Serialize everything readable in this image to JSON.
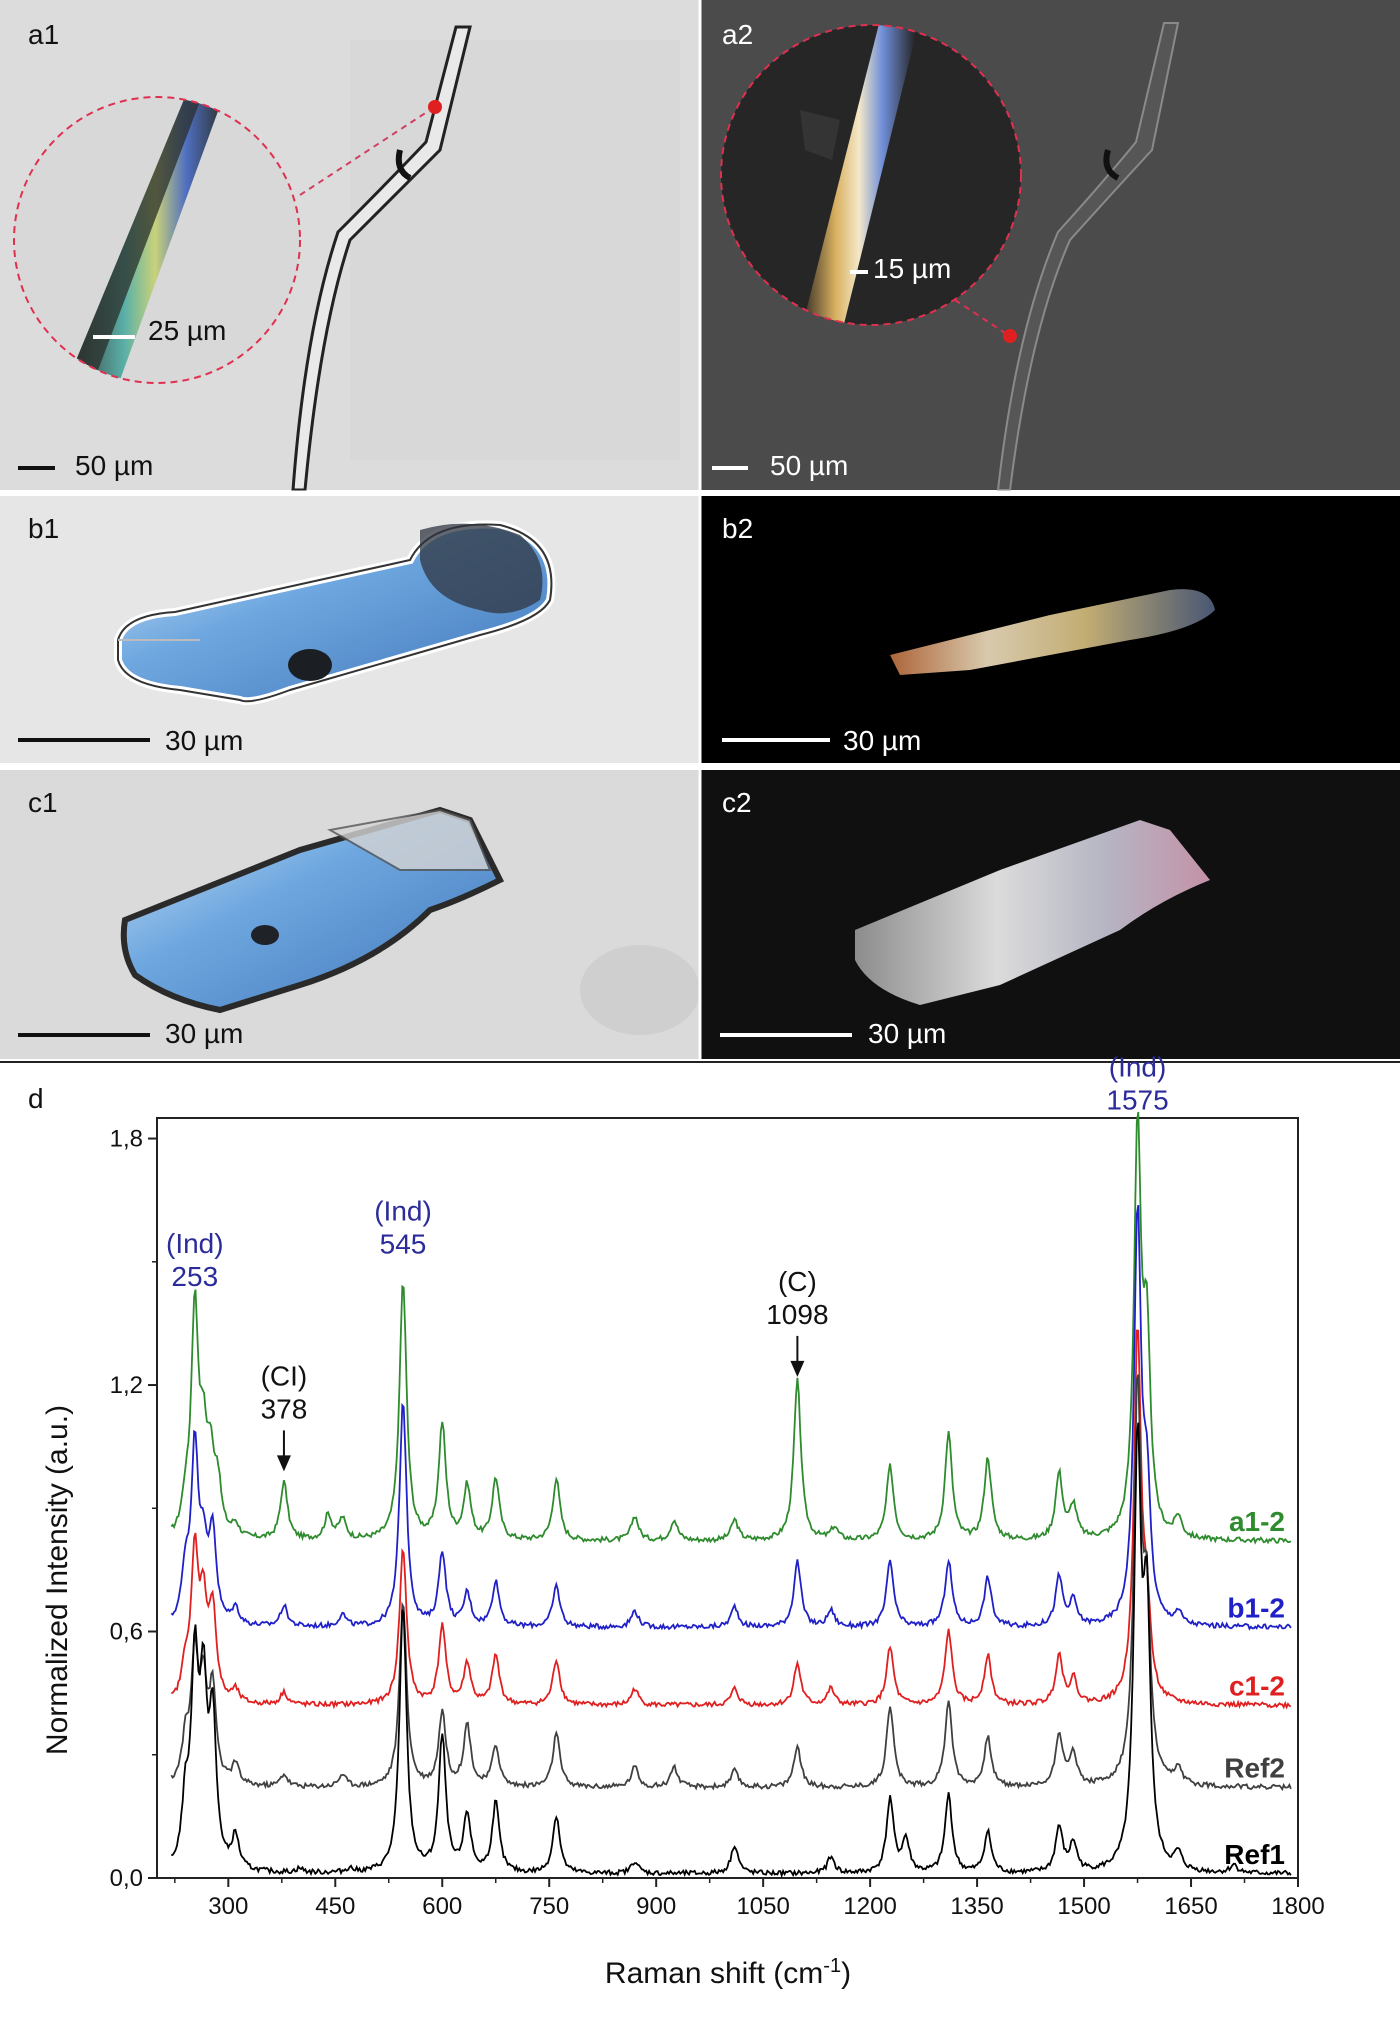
{
  "panels": [
    {
      "id": "a1",
      "label": "a1",
      "scale_label": "50 µm",
      "inset_scale_label": "25 µm"
    },
    {
      "id": "a2",
      "label": "a2",
      "scale_label": "50 µm",
      "inset_scale_label": "15 µm"
    },
    {
      "id": "b1",
      "label": "b1",
      "scale_label": "30 µm"
    },
    {
      "id": "b2",
      "label": "b2",
      "scale_label": "30 µm"
    },
    {
      "id": "c1",
      "label": "c1",
      "scale_label": "30 µm"
    },
    {
      "id": "c2",
      "label": "c2",
      "scale_label": "30 µm"
    }
  ],
  "chart_data": {
    "type": "line",
    "panel_label": "d",
    "xlabel": "Raman shift (cm",
    "xlabel_sup": "-1",
    "xlabel_end": ")",
    "ylabel": "Normalized Intensity (a.u.)",
    "xlim": [
      200,
      1800
    ],
    "ylim": [
      0,
      1.85
    ],
    "x_ticks": [
      300,
      450,
      600,
      750,
      900,
      1050,
      1200,
      1350,
      1500,
      1650,
      1800
    ],
    "x_tick_labels": [
      "300",
      "450",
      "600",
      "750",
      "900",
      "1050",
      "1200",
      "1350",
      "1500",
      "1650",
      "1800"
    ],
    "y_ticks": [
      0,
      0.6,
      1.2,
      1.8
    ],
    "y_tick_labels": [
      "0,0",
      "0,6",
      "1,2",
      "1,8"
    ],
    "grid": false,
    "annotations": [
      {
        "top": "(Ind)",
        "bottom": "253",
        "x": 253,
        "color": "#2b2b9a"
      },
      {
        "top": "(CI)",
        "bottom": "378",
        "x": 378,
        "color": "#111111",
        "arrow": true,
        "arrow_to": 0.98
      },
      {
        "top": "(Ind)",
        "bottom": "545",
        "x": 545,
        "color": "#2b2b9a"
      },
      {
        "top": "(C)",
        "bottom": "1098",
        "x": 1098,
        "color": "#111111",
        "arrow": true,
        "arrow_to": 1.21
      },
      {
        "top": "(Ind)",
        "bottom": "1575",
        "x": 1575,
        "color": "#2b2b9a"
      }
    ],
    "series": [
      {
        "name": "a1-2",
        "color": "#2e8b2e",
        "offset": 0.82,
        "peaks": [
          [
            240,
            0.07
          ],
          [
            253,
            0.55
          ],
          [
            265,
            0.2
          ],
          [
            275,
            0.16
          ],
          [
            285,
            0.12
          ],
          [
            310,
            0.03
          ],
          [
            378,
            0.14
          ],
          [
            440,
            0.06
          ],
          [
            460,
            0.05
          ],
          [
            545,
            0.63
          ],
          [
            600,
            0.28
          ],
          [
            635,
            0.13
          ],
          [
            675,
            0.15
          ],
          [
            760,
            0.15
          ],
          [
            870,
            0.06
          ],
          [
            925,
            0.05
          ],
          [
            1010,
            0.05
          ],
          [
            1098,
            0.39
          ],
          [
            1150,
            0.03
          ],
          [
            1228,
            0.18
          ],
          [
            1310,
            0.26
          ],
          [
            1365,
            0.2
          ],
          [
            1465,
            0.16
          ],
          [
            1485,
            0.08
          ],
          [
            1575,
            0.98
          ],
          [
            1588,
            0.45
          ],
          [
            1632,
            0.05
          ]
        ]
      },
      {
        "name": "b1-2",
        "color": "#2020c8",
        "offset": 0.61,
        "peaks": [
          [
            240,
            0.12
          ],
          [
            253,
            0.42
          ],
          [
            265,
            0.16
          ],
          [
            278,
            0.22
          ],
          [
            310,
            0.04
          ],
          [
            378,
            0.05
          ],
          [
            460,
            0.03
          ],
          [
            545,
            0.55
          ],
          [
            600,
            0.18
          ],
          [
            635,
            0.08
          ],
          [
            675,
            0.11
          ],
          [
            760,
            0.1
          ],
          [
            870,
            0.04
          ],
          [
            1010,
            0.05
          ],
          [
            1098,
            0.16
          ],
          [
            1145,
            0.04
          ],
          [
            1228,
            0.16
          ],
          [
            1310,
            0.16
          ],
          [
            1365,
            0.12
          ],
          [
            1465,
            0.12
          ],
          [
            1485,
            0.06
          ],
          [
            1575,
            0.99
          ],
          [
            1588,
            0.3
          ],
          [
            1632,
            0.03
          ]
        ]
      },
      {
        "name": "c1-2",
        "color": "#e02020",
        "offset": 0.42,
        "peaks": [
          [
            240,
            0.08
          ],
          [
            253,
            0.35
          ],
          [
            265,
            0.22
          ],
          [
            278,
            0.22
          ],
          [
            310,
            0.03
          ],
          [
            378,
            0.03
          ],
          [
            545,
            0.38
          ],
          [
            600,
            0.19
          ],
          [
            635,
            0.1
          ],
          [
            675,
            0.12
          ],
          [
            760,
            0.11
          ],
          [
            870,
            0.04
          ],
          [
            1010,
            0.04
          ],
          [
            1098,
            0.1
          ],
          [
            1145,
            0.04
          ],
          [
            1228,
            0.14
          ],
          [
            1310,
            0.18
          ],
          [
            1365,
            0.12
          ],
          [
            1465,
            0.12
          ],
          [
            1485,
            0.06
          ],
          [
            1575,
            0.9
          ],
          [
            1588,
            0.2
          ]
        ]
      },
      {
        "name": "Ref2",
        "color": "#404040",
        "offset": 0.22,
        "peaks": [
          [
            240,
            0.1
          ],
          [
            253,
            0.3
          ],
          [
            265,
            0.22
          ],
          [
            278,
            0.22
          ],
          [
            310,
            0.05
          ],
          [
            378,
            0.03
          ],
          [
            460,
            0.03
          ],
          [
            545,
            0.45
          ],
          [
            600,
            0.18
          ],
          [
            635,
            0.15
          ],
          [
            675,
            0.1
          ],
          [
            760,
            0.13
          ],
          [
            870,
            0.05
          ],
          [
            925,
            0.05
          ],
          [
            1010,
            0.04
          ],
          [
            1098,
            0.1
          ],
          [
            1228,
            0.2
          ],
          [
            1310,
            0.21
          ],
          [
            1365,
            0.12
          ],
          [
            1465,
            0.13
          ],
          [
            1485,
            0.08
          ],
          [
            1575,
            0.95
          ],
          [
            1588,
            0.4
          ],
          [
            1632,
            0.04
          ]
        ]
      },
      {
        "name": "Ref1",
        "color": "#000000",
        "offset": 0.01,
        "peaks": [
          [
            240,
            0.15
          ],
          [
            253,
            0.48
          ],
          [
            265,
            0.4
          ],
          [
            278,
            0.35
          ],
          [
            310,
            0.08
          ],
          [
            400,
            0.01
          ],
          [
            470,
            0.01
          ],
          [
            545,
            0.65
          ],
          [
            600,
            0.33
          ],
          [
            635,
            0.14
          ],
          [
            675,
            0.17
          ],
          [
            760,
            0.14
          ],
          [
            870,
            0.03
          ],
          [
            1010,
            0.07
          ],
          [
            1145,
            0.04
          ],
          [
            1228,
            0.18
          ],
          [
            1250,
            0.08
          ],
          [
            1310,
            0.19
          ],
          [
            1365,
            0.1
          ],
          [
            1465,
            0.11
          ],
          [
            1485,
            0.07
          ],
          [
            1575,
            1.0
          ],
          [
            1588,
            0.6
          ],
          [
            1632,
            0.04
          ],
          [
            1710,
            0.02
          ]
        ]
      }
    ]
  }
}
